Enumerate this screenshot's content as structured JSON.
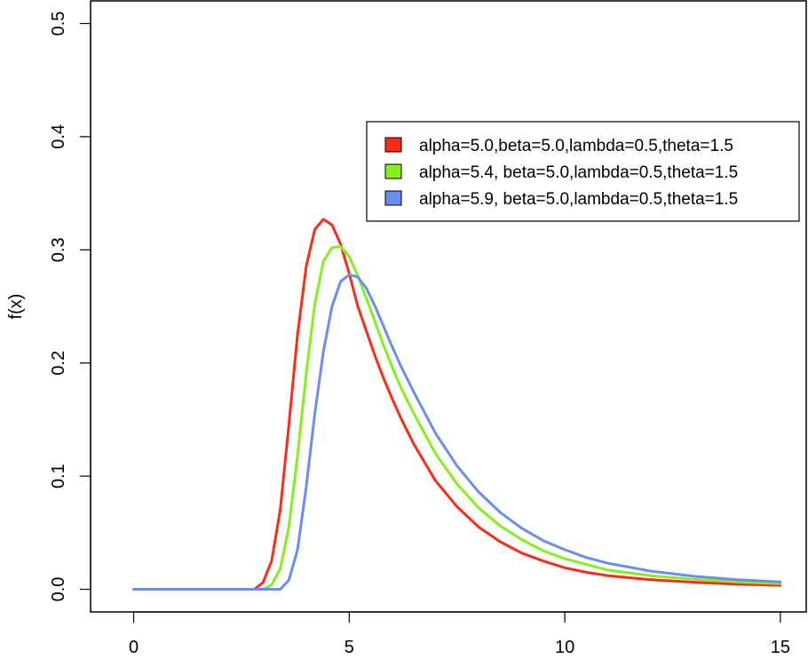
{
  "chart_data": {
    "type": "line",
    "title": "",
    "xlabel": "",
    "ylabel": "f(x)",
    "xlim": [
      -1,
      15.6
    ],
    "ylim": [
      -0.02,
      0.52
    ],
    "xticks": [
      0,
      5,
      10,
      15
    ],
    "yticks": [
      0.0,
      0.1,
      0.2,
      0.3,
      0.4,
      0.5
    ],
    "xtick_labels": [
      "0",
      "5",
      "10",
      "15"
    ],
    "ytick_labels": [
      "0.0",
      "0.1",
      "0.2",
      "0.3",
      "0.4",
      "0.5"
    ],
    "grid": false,
    "legend_position": "top-right",
    "series": [
      {
        "label": "alpha=5.0,beta=5.0,lambda=0.5,theta=1.5",
        "color": "#ff2a1a",
        "x": [
          0,
          2.8,
          3.0,
          3.2,
          3.4,
          3.6,
          3.8,
          4.0,
          4.2,
          4.4,
          4.6,
          4.8,
          5.0,
          5.2,
          5.4,
          5.6,
          5.8,
          6.0,
          6.2,
          6.5,
          7.0,
          7.5,
          8.0,
          8.5,
          9.0,
          9.5,
          10.0,
          10.5,
          11.0,
          12.0,
          13.0,
          14.0,
          15.0
        ],
        "y": [
          0,
          0,
          0.006,
          0.025,
          0.07,
          0.145,
          0.225,
          0.285,
          0.318,
          0.327,
          0.322,
          0.305,
          0.279,
          0.25,
          0.228,
          0.206,
          0.186,
          0.168,
          0.151,
          0.128,
          0.096,
          0.073,
          0.055,
          0.042,
          0.032,
          0.025,
          0.019,
          0.015,
          0.012,
          0.0085,
          0.0062,
          0.0046,
          0.0035
        ]
      },
      {
        "label": "alpha=5.4, beta=5.0,lambda=0.5,theta=1.5",
        "color": "#86f01e",
        "x": [
          0,
          3.0,
          3.2,
          3.4,
          3.6,
          3.8,
          4.0,
          4.2,
          4.4,
          4.6,
          4.8,
          5.0,
          5.2,
          5.4,
          5.6,
          5.8,
          6.0,
          6.2,
          6.5,
          7.0,
          7.5,
          8.0,
          8.5,
          9.0,
          9.5,
          10.0,
          10.5,
          11.0,
          12.0,
          13.0,
          14.0,
          15.0
        ],
        "y": [
          0,
          0,
          0.004,
          0.018,
          0.055,
          0.118,
          0.19,
          0.252,
          0.29,
          0.302,
          0.303,
          0.294,
          0.277,
          0.257,
          0.236,
          0.215,
          0.196,
          0.178,
          0.155,
          0.12,
          0.093,
          0.072,
          0.056,
          0.044,
          0.034,
          0.027,
          0.022,
          0.017,
          0.012,
          0.0088,
          0.0065,
          0.005
        ]
      },
      {
        "label": "alpha=5.9, beta=5.0,lambda=0.5,theta=1.5",
        "color": "#6a8ef0",
        "x": [
          0,
          3.4,
          3.6,
          3.8,
          4.0,
          4.2,
          4.4,
          4.6,
          4.8,
          5.0,
          5.2,
          5.4,
          5.6,
          5.8,
          6.0,
          6.2,
          6.5,
          7.0,
          7.5,
          8.0,
          8.5,
          9.0,
          9.5,
          10.0,
          10.5,
          11.0,
          12.0,
          13.0,
          14.0,
          15.0
        ],
        "y": [
          0,
          0,
          0.008,
          0.035,
          0.09,
          0.155,
          0.21,
          0.25,
          0.272,
          0.278,
          0.276,
          0.266,
          0.25,
          0.232,
          0.214,
          0.197,
          0.174,
          0.138,
          0.109,
          0.086,
          0.068,
          0.054,
          0.043,
          0.035,
          0.028,
          0.023,
          0.016,
          0.0115,
          0.0085,
          0.0065
        ]
      }
    ]
  }
}
